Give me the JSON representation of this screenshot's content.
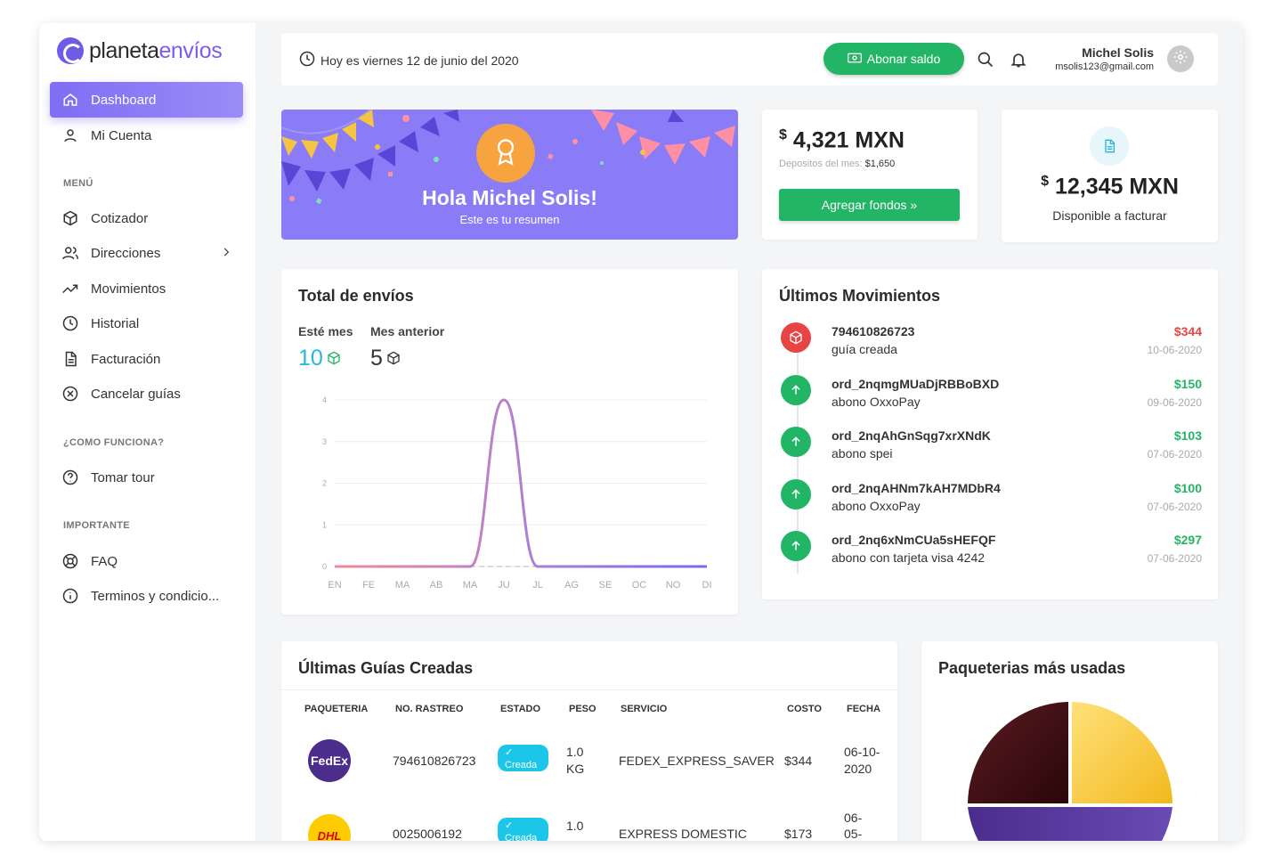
{
  "brand": {
    "name_part1": "planeta",
    "name_part2": "envíos",
    "accent": "#7b5cf0"
  },
  "sidebar": {
    "items": [
      {
        "label": "Dashboard",
        "icon": "home-icon",
        "active": true
      },
      {
        "label": "Mi Cuenta",
        "icon": "user-icon"
      }
    ],
    "sections": [
      {
        "title": "MENÚ",
        "items": [
          {
            "label": "Cotizador",
            "icon": "box-icon"
          },
          {
            "label": "Direcciones",
            "icon": "users-icon"
          },
          {
            "label": "Movimientos",
            "icon": "trend-icon"
          },
          {
            "label": "Historial",
            "icon": "clock-icon"
          },
          {
            "label": "Facturación",
            "icon": "document-icon"
          },
          {
            "label": "Cancelar guías",
            "icon": "cancel-icon"
          }
        ]
      },
      {
        "title": "¿COMO FUNCIONA?",
        "items": [
          {
            "label": "Tomar tour",
            "icon": "help-icon"
          }
        ]
      },
      {
        "title": "IMPORTANTE",
        "items": [
          {
            "label": "FAQ",
            "icon": "lifebuoy-icon"
          },
          {
            "label": "Terminos y condicio...",
            "icon": "info-icon"
          }
        ]
      }
    ]
  },
  "topbar": {
    "date_text": "Hoy es viernes 12 de junio del 2020",
    "abonar_label": "Abonar saldo",
    "user_name": "Michel Solis",
    "user_email": "msolis123@gmail.com"
  },
  "banner": {
    "title": "Hola Michel Solis!",
    "subtitle": "Este es tu resumen"
  },
  "balance": {
    "currency_symbol": "$",
    "amount": "4,321 MXN",
    "deposits_label": "Depositos del mes:",
    "deposits_value": "$1,650",
    "button_label": "Agregar fondos »"
  },
  "billing": {
    "currency_symbol": "$",
    "amount": "12,345 MXN",
    "label": "Disponible a facturar"
  },
  "shipments": {
    "title": "Total de envíos",
    "this_month_label": "Esté mes",
    "this_month_value": "10",
    "prev_month_label": "Mes anterior",
    "prev_month_value": "5"
  },
  "chart_data": {
    "type": "line",
    "categories": [
      "EN",
      "FE",
      "MA",
      "AB",
      "MA",
      "JU",
      "JL",
      "AG",
      "SE",
      "OC",
      "NO",
      "DI"
    ],
    "values": [
      0,
      0,
      0,
      0,
      0,
      4,
      0,
      0,
      0,
      0,
      0,
      0
    ],
    "y_ticks": [
      "0",
      "1",
      "2",
      "3",
      "4"
    ],
    "ylim": [
      0,
      4
    ],
    "grid": true
  },
  "movements": {
    "title": "Últimos Movimientos",
    "items": [
      {
        "id": "794610826723",
        "desc": "guía creada",
        "amount": "$344",
        "date": "10-06-2020",
        "type": "out"
      },
      {
        "id": "ord_2nqmgMUaDjRBBoBXD",
        "desc": "abono OxxoPay",
        "amount": "$150",
        "date": "09-06-2020",
        "type": "in"
      },
      {
        "id": "ord_2nqAhGnSqg7xrXNdK",
        "desc": "abono spei",
        "amount": "$103",
        "date": "07-06-2020",
        "type": "in"
      },
      {
        "id": "ord_2nqAHNm7kAH7MDbR4",
        "desc": "abono OxxoPay",
        "amount": "$100",
        "date": "07-06-2020",
        "type": "in"
      },
      {
        "id": "ord_2nq6xNmCUa5sHEFQF",
        "desc": "abono con tarjeta visa 4242",
        "amount": "$297",
        "date": "07-06-2020",
        "type": "in"
      }
    ],
    "colors": {
      "out": "#e84444",
      "in": "#22b565"
    }
  },
  "guides": {
    "title": "Últimas Guías Creadas",
    "columns": [
      "PAQUETERIA",
      "NO. RASTREO",
      "ESTADO",
      "PESO",
      "SERVICIO",
      "COSTO",
      "FECHA"
    ],
    "rows": [
      {
        "carrier": "FedEx",
        "tracking": "794610826723",
        "status": "Creada",
        "weight_1": "1.0",
        "weight_2": "KG",
        "service": "FEDEX_EXPRESS_SAVER",
        "cost": "$344",
        "date_1": "06-10-",
        "date_2": "2020"
      },
      {
        "carrier": "DHL",
        "tracking": "0025006192",
        "status": "Creada",
        "weight_1": "1.0",
        "weight_2": "",
        "service": "EXPRESS DOMESTIC",
        "cost": "$173",
        "date_1": "06-",
        "date_2": "05-"
      }
    ]
  },
  "carriers_chart": {
    "title": "Paqueterias más usadas"
  }
}
